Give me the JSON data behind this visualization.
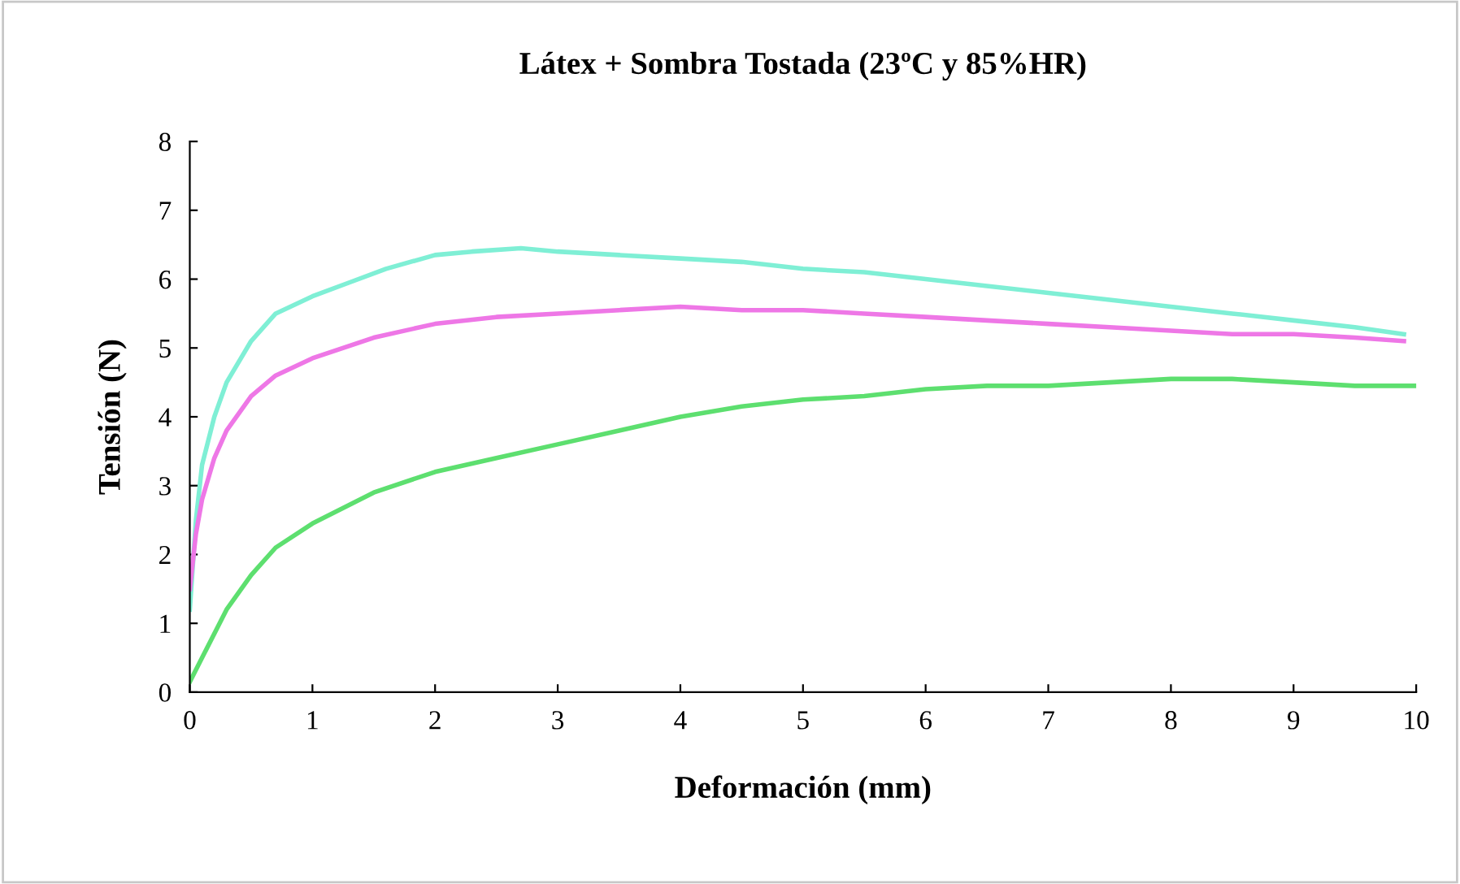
{
  "chart_data": {
    "type": "line",
    "title": "Látex + Sombra Tostada (23ºC y 85%HR)",
    "xlabel": "Deformación (mm)",
    "ylabel": "Tensión (N)",
    "xlim": [
      0,
      10
    ],
    "ylim": [
      0,
      8
    ],
    "xticks": [
      0,
      1,
      2,
      3,
      4,
      5,
      6,
      7,
      8,
      9,
      10
    ],
    "yticks": [
      0,
      1,
      2,
      3,
      4,
      5,
      6,
      7,
      8
    ],
    "grid": false,
    "legend": false,
    "marker": "none",
    "line_style": "solid",
    "series": [
      {
        "color": "#7fefd5",
        "x": [
          0,
          0.05,
          0.1,
          0.2,
          0.3,
          0.5,
          0.7,
          1,
          1.3,
          1.6,
          2,
          2.3,
          2.7,
          3,
          3.5,
          4,
          4.5,
          5,
          5.5,
          6,
          6.5,
          7,
          7.5,
          8,
          8.5,
          9,
          9.5,
          9.9
        ],
        "values": [
          1.2,
          2.5,
          3.3,
          4.0,
          4.5,
          5.1,
          5.5,
          5.75,
          5.95,
          6.15,
          6.35,
          6.4,
          6.45,
          6.4,
          6.35,
          6.3,
          6.25,
          6.15,
          6.1,
          6.0,
          5.9,
          5.8,
          5.7,
          5.6,
          5.5,
          5.4,
          5.3,
          5.2
        ]
      },
      {
        "color": "#ee77e6",
        "x": [
          0,
          0.05,
          0.1,
          0.2,
          0.3,
          0.5,
          0.7,
          1,
          1.5,
          2,
          2.5,
          3,
          3.5,
          4,
          4.5,
          5,
          5.5,
          6,
          6.5,
          7,
          7.5,
          8,
          8.5,
          9,
          9.5,
          9.9
        ],
        "values": [
          1.5,
          2.3,
          2.8,
          3.4,
          3.8,
          4.3,
          4.6,
          4.85,
          5.15,
          5.35,
          5.45,
          5.5,
          5.55,
          5.6,
          5.55,
          5.55,
          5.5,
          5.45,
          5.4,
          5.35,
          5.3,
          5.25,
          5.2,
          5.2,
          5.15,
          5.1
        ]
      },
      {
        "color": "#5ddf6f",
        "x": [
          0,
          0.1,
          0.3,
          0.5,
          0.7,
          1,
          1.5,
          2,
          2.5,
          3,
          3.5,
          4,
          4.5,
          5,
          5.5,
          6,
          6.5,
          7,
          7.5,
          8,
          8.5,
          9,
          9.5,
          10
        ],
        "values": [
          0.15,
          0.5,
          1.2,
          1.7,
          2.1,
          2.45,
          2.9,
          3.2,
          3.4,
          3.6,
          3.8,
          4.0,
          4.15,
          4.25,
          4.3,
          4.4,
          4.45,
          4.45,
          4.5,
          4.55,
          4.55,
          4.5,
          4.45,
          4.45
        ]
      }
    ]
  }
}
